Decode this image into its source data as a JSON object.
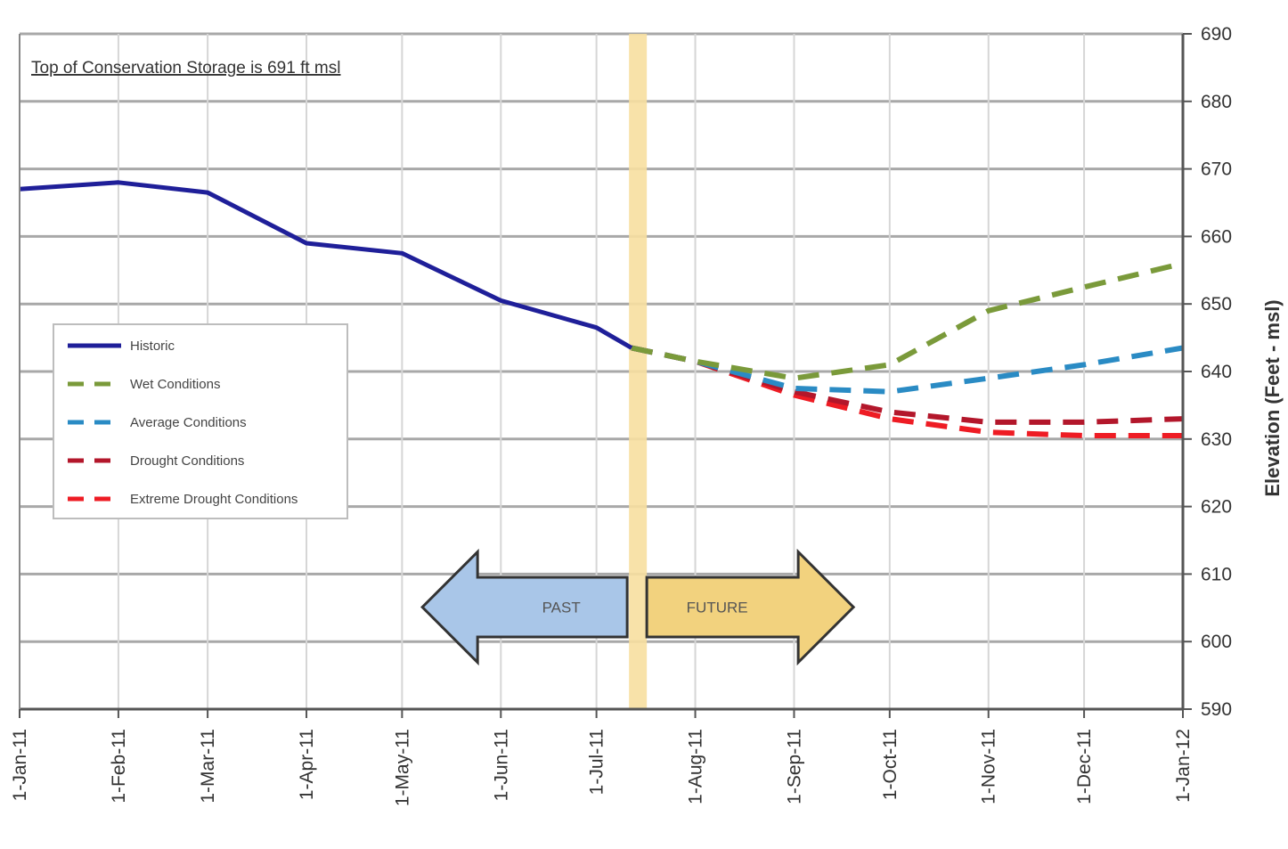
{
  "chart_data": {
    "type": "line",
    "title": "",
    "xlabel": "",
    "ylabel": "Elevation (Feet - msl)",
    "ylim": [
      590,
      690
    ],
    "yticks": [
      590,
      600,
      610,
      620,
      630,
      640,
      650,
      660,
      670,
      680,
      690
    ],
    "y_axis_side": "right",
    "xlim": [
      "2011-01-01",
      "2012-01-01"
    ],
    "xticks": [
      {
        "date": "2011-01-01",
        "label": "1-Jan-11"
      },
      {
        "date": "2011-02-01",
        "label": "1-Feb-11"
      },
      {
        "date": "2011-03-01",
        "label": "1-Mar-11"
      },
      {
        "date": "2011-04-01",
        "label": "1-Apr-11"
      },
      {
        "date": "2011-05-01",
        "label": "1-May-11"
      },
      {
        "date": "2011-06-01",
        "label": "1-Jun-11"
      },
      {
        "date": "2011-07-01",
        "label": "1-Jul-11"
      },
      {
        "date": "2011-08-01",
        "label": "1-Aug-11"
      },
      {
        "date": "2011-09-01",
        "label": "1-Sep-11"
      },
      {
        "date": "2011-10-01",
        "label": "1-Oct-11"
      },
      {
        "date": "2011-11-01",
        "label": "1-Nov-11"
      },
      {
        "date": "2011-12-01",
        "label": "1-Dec-11"
      },
      {
        "date": "2012-01-01",
        "label": "1-Jan-12"
      }
    ],
    "grid": true,
    "legend_position": "left",
    "annotation": "Top of Conservation Storage is 691 ft msl",
    "current_date_marker": "2011-07-14",
    "arrows": [
      {
        "direction": "left",
        "label": "PAST",
        "color": "#a9c6e8"
      },
      {
        "direction": "right",
        "label": "FUTURE",
        "color": "#f2d27e"
      }
    ],
    "series": [
      {
        "name": "Historic",
        "color": "#1f1f99",
        "style": "solid",
        "points": [
          [
            "2011-01-01",
            667
          ],
          [
            "2011-02-01",
            668
          ],
          [
            "2011-03-01",
            666.5
          ],
          [
            "2011-04-01",
            659
          ],
          [
            "2011-05-01",
            657.5
          ],
          [
            "2011-06-01",
            650.5
          ],
          [
            "2011-07-01",
            646.5
          ],
          [
            "2011-07-12",
            643.5
          ]
        ]
      },
      {
        "name": "Wet Conditions",
        "color": "#7a9a3a",
        "style": "dashed",
        "points": [
          [
            "2011-07-12",
            643.5
          ],
          [
            "2011-08-01",
            641.5
          ],
          [
            "2011-09-01",
            639
          ],
          [
            "2011-10-01",
            641
          ],
          [
            "2011-11-01",
            649
          ],
          [
            "2011-12-01",
            652.5
          ],
          [
            "2012-01-01",
            656
          ]
        ]
      },
      {
        "name": "Average Conditions",
        "color": "#2a8bc4",
        "style": "dashed",
        "points": [
          [
            "2011-07-12",
            643.5
          ],
          [
            "2011-08-01",
            641.5
          ],
          [
            "2011-09-01",
            637.5
          ],
          [
            "2011-10-01",
            637
          ],
          [
            "2011-11-01",
            639
          ],
          [
            "2011-12-01",
            641
          ],
          [
            "2012-01-01",
            643.5
          ]
        ]
      },
      {
        "name": "Drought Conditions",
        "color": "#b3172b",
        "style": "dashed",
        "points": [
          [
            "2011-07-12",
            643.5
          ],
          [
            "2011-08-01",
            641.5
          ],
          [
            "2011-09-01",
            637
          ],
          [
            "2011-10-01",
            634
          ],
          [
            "2011-11-01",
            632.5
          ],
          [
            "2011-12-01",
            632.5
          ],
          [
            "2012-01-01",
            633
          ]
        ]
      },
      {
        "name": "Extreme Drought Conditions",
        "color": "#ee1c24",
        "style": "dashed",
        "points": [
          [
            "2011-07-12",
            643.5
          ],
          [
            "2011-08-01",
            641.5
          ],
          [
            "2011-09-01",
            636.5
          ],
          [
            "2011-10-01",
            633
          ],
          [
            "2011-11-01",
            631
          ],
          [
            "2011-12-01",
            630.5
          ],
          [
            "2012-01-01",
            630.5
          ]
        ]
      }
    ]
  }
}
